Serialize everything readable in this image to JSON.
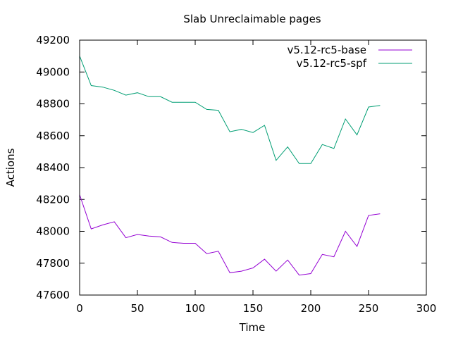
{
  "chart_data": {
    "type": "line",
    "title": "Slab Unreclaimable pages",
    "xlabel": "Time",
    "ylabel": "Actions",
    "xlim": [
      0,
      300
    ],
    "ylim": [
      47600,
      49200
    ],
    "xticks": [
      0,
      50,
      100,
      150,
      200,
      250,
      300
    ],
    "yticks": [
      47600,
      47800,
      48000,
      48200,
      48400,
      48600,
      48800,
      49000,
      49200
    ],
    "grid": false,
    "legend_position": "top-right",
    "series": [
      {
        "name": "v5.12-rc5-base",
        "color": "#9400d3",
        "x": [
          0,
          10,
          20,
          30,
          40,
          50,
          60,
          70,
          80,
          90,
          100,
          110,
          120,
          130,
          140,
          150,
          160,
          170,
          180,
          190,
          200,
          210,
          220,
          230,
          240,
          250,
          260
        ],
        "y": [
          48230,
          48015,
          48040,
          48060,
          47960,
          47980,
          47970,
          47965,
          47930,
          47925,
          47925,
          47860,
          47875,
          47740,
          47750,
          47770,
          47825,
          47750,
          47820,
          47725,
          47735,
          47855,
          47840,
          48000,
          47905,
          48100,
          48110
        ]
      },
      {
        "name": "v5.12-rc5-spf",
        "color": "#009e73",
        "x": [
          0,
          10,
          20,
          30,
          40,
          50,
          60,
          70,
          80,
          90,
          100,
          110,
          120,
          130,
          140,
          150,
          160,
          170,
          180,
          190,
          200,
          210,
          220,
          230,
          240,
          250,
          260
        ],
        "y": [
          49100,
          48915,
          48905,
          48885,
          48855,
          48870,
          48845,
          48845,
          48810,
          48810,
          48810,
          48765,
          48760,
          48625,
          48640,
          48620,
          48665,
          48445,
          48530,
          48425,
          48425,
          48545,
          48520,
          48705,
          48605,
          48780,
          48790
        ]
      }
    ]
  }
}
